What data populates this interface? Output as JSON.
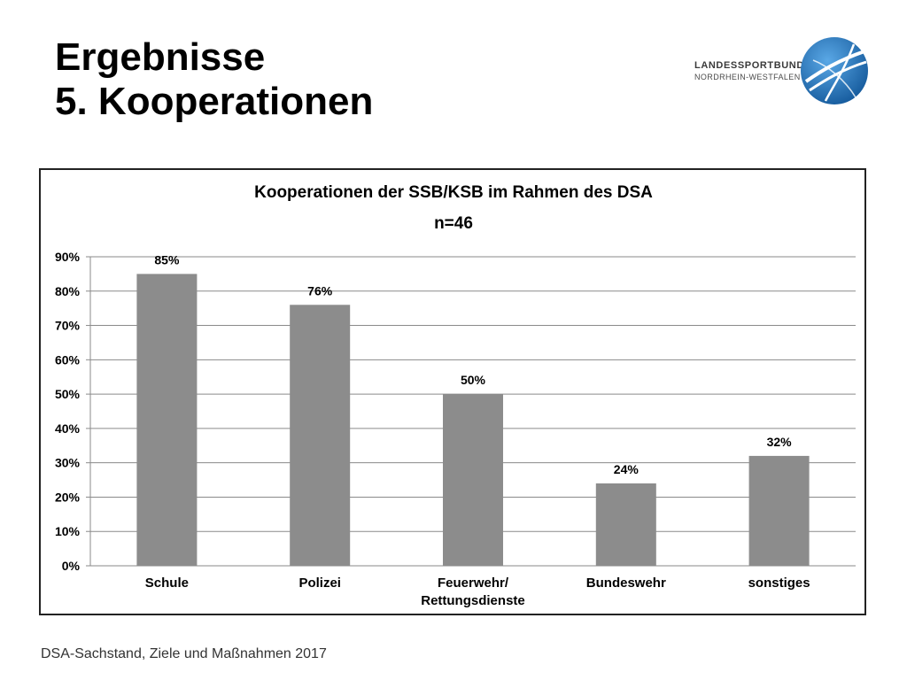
{
  "slide": {
    "title_line1": "Ergebnisse",
    "title_line2": "5. Kooperationen",
    "footer": "DSA-Sachstand, Ziele und Maßnahmen 2017"
  },
  "logo": {
    "line1": "LANDESSPORTBUND",
    "line2": "NORDRHEIN-WESTFALEN",
    "icon": "globe-logo-icon",
    "color": "#1f6fb5"
  },
  "chart_data": {
    "type": "bar",
    "title": "Kooperationen der SSB/KSB im Rahmen des DSA",
    "subtitle": "n=46",
    "categories": [
      "Schule",
      "Polizei",
      "Feuerwehr/\nRettungsdienste",
      "Bundeswehr",
      "sonstiges"
    ],
    "values": [
      0.85,
      0.76,
      0.5,
      0.24,
      0.32
    ],
    "data_labels": [
      "85%",
      "76%",
      "50%",
      "24%",
      "32%"
    ],
    "ylim": [
      0,
      0.9
    ],
    "yticks": [
      "0%",
      "10%",
      "20%",
      "30%",
      "40%",
      "50%",
      "60%",
      "70%",
      "80%",
      "90%"
    ],
    "grid": true,
    "legend": "none",
    "bar_color": "#8c8c8c",
    "grid_color": "#8a8a8a"
  }
}
